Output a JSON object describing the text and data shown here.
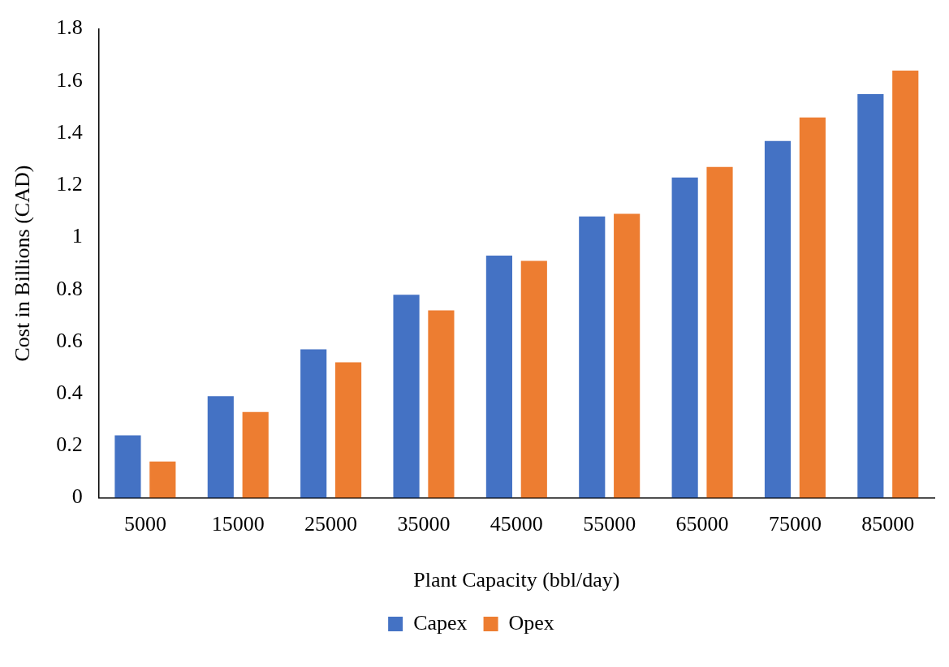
{
  "chart_data": {
    "type": "bar",
    "xlabel": "Plant Capacity (bbl/day)",
    "ylabel": "Cost in Billions (CAD)",
    "categories": [
      "5000",
      "15000",
      "25000",
      "35000",
      "45000",
      "55000",
      "65000",
      "75000",
      "85000"
    ],
    "series": [
      {
        "name": "Capex",
        "color": "#4472c4",
        "values": [
          0.24,
          0.39,
          0.57,
          0.78,
          0.93,
          1.08,
          1.23,
          1.37,
          1.55
        ]
      },
      {
        "name": "Opex",
        "color": "#ed7d31",
        "values": [
          0.14,
          0.33,
          0.52,
          0.72,
          0.91,
          1.09,
          1.27,
          1.46,
          1.64
        ]
      }
    ],
    "ylim": [
      0,
      1.8
    ],
    "yticks": [
      0,
      0.2,
      0.4,
      0.6,
      0.8,
      1,
      1.2,
      1.4,
      1.6,
      1.8
    ],
    "grid": false,
    "legend": "bottom"
  }
}
